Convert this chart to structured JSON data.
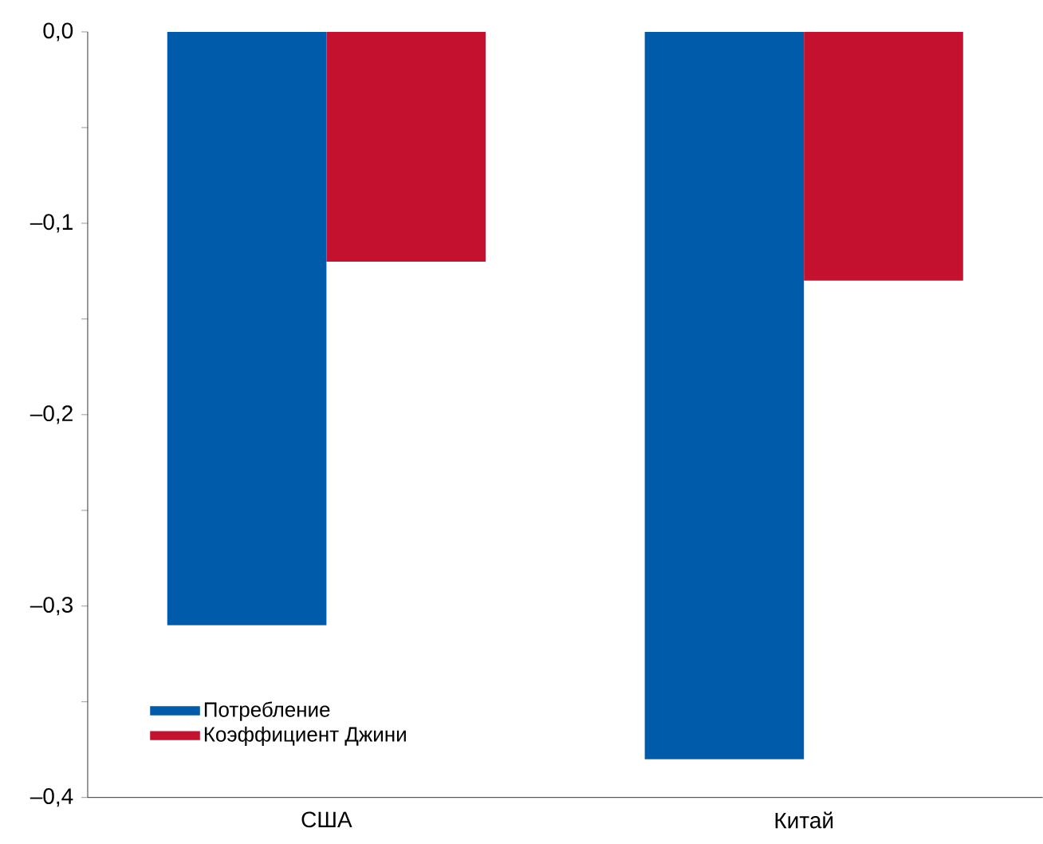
{
  "chart_data": {
    "type": "bar",
    "categories": [
      "США",
      "Китай"
    ],
    "series": [
      {
        "name": "Потребление",
        "color": "#005bab",
        "values": [
          -0.31,
          -0.38
        ]
      },
      {
        "name": "Коэффициент Джини",
        "color": "#c3112f",
        "values": [
          -0.12,
          -0.13
        ]
      }
    ],
    "ylim": [
      -0.4,
      0.0
    ],
    "yticks": [
      {
        "value": 0.0,
        "label": "0,0"
      },
      {
        "value": -0.05,
        "label": null
      },
      {
        "value": -0.1,
        "label": "–0,1"
      },
      {
        "value": -0.15,
        "label": null
      },
      {
        "value": -0.2,
        "label": "–0,2"
      },
      {
        "value": -0.25,
        "label": null
      },
      {
        "value": -0.3,
        "label": "–0,3"
      },
      {
        "value": -0.35,
        "label": null
      },
      {
        "value": -0.4,
        "label": "–0,4"
      }
    ],
    "legend": "bottom left",
    "grid": false
  }
}
